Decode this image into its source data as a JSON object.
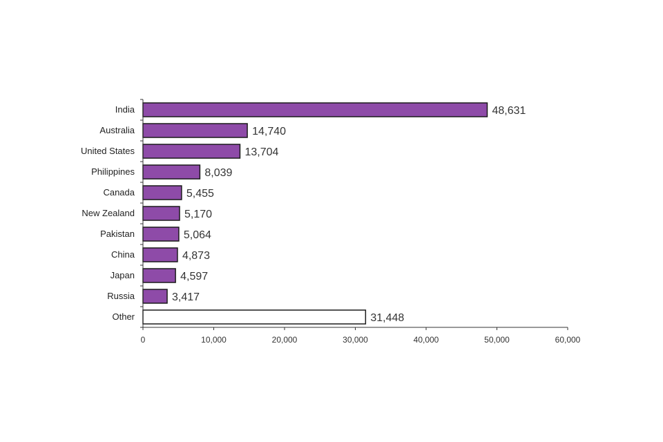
{
  "chart_data": {
    "type": "bar",
    "orientation": "horizontal",
    "title": "",
    "xlabel": "",
    "ylabel": "",
    "categories": [
      "India",
      "Australia",
      "United States",
      "Philippines",
      "Canada",
      "New Zealand",
      "Pakistan",
      "China",
      "Japan",
      "Russia",
      "Other"
    ],
    "values": [
      48631,
      14740,
      13704,
      8039,
      5455,
      5170,
      5064,
      4873,
      4597,
      3417,
      31448
    ],
    "data_labels": [
      "48,631",
      "14,740",
      "13,704",
      "8,039",
      "5,455",
      "5,170",
      "5,064",
      "4,873",
      "4,597",
      "3,417",
      "31,448"
    ],
    "xlim": [
      0,
      60000
    ],
    "xticks": [
      0,
      10000,
      20000,
      30000,
      40000,
      50000,
      60000
    ],
    "xtick_labels": [
      "0",
      "10,000",
      "20,000",
      "30,000",
      "40,000",
      "50,000",
      "60,000"
    ],
    "grid": false,
    "legend": "none",
    "colors": {
      "bar_fill": "#8e4ba8",
      "other_fill": "#ffffff",
      "bar_stroke": "#1a1a1a"
    }
  }
}
